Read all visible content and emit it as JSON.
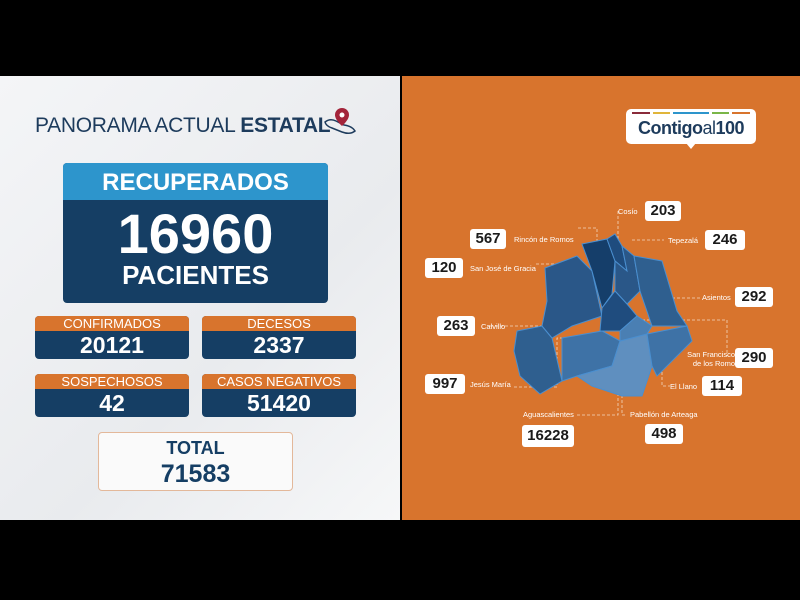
{
  "header": {
    "title_light": "PANORAMA ACTUAL",
    "title_bold": "ESTATAL",
    "icon": "map-pin-icon"
  },
  "recuperados": {
    "label": "RECUPERADOS",
    "value": "16960",
    "unit": "PACIENTES"
  },
  "stats": [
    {
      "label": "CONFIRMADOS",
      "value": "20121"
    },
    {
      "label": "DECESOS",
      "value": "2337"
    },
    {
      "label": "SOSPECHOSOS",
      "value": "42"
    },
    {
      "label": "CASOS NEGATIVOS",
      "value": "51420"
    }
  ],
  "total": {
    "label": "TOTAL",
    "value": "71583"
  },
  "logo": {
    "text_bold": "Contigo",
    "text_light": "al",
    "text_num": "100",
    "bar_colors": [
      "#8a2b3a",
      "#e0b53a",
      "#2d95cc",
      "#7ab648",
      "#d8742d"
    ]
  },
  "colors": {
    "orange": "#d8742d",
    "navy": "#153e64",
    "light_blue": "#2d95cc"
  },
  "municipalities": [
    {
      "name": "Cosío",
      "value": "203"
    },
    {
      "name": "Rincón de Romos",
      "value": "567"
    },
    {
      "name": "Tepezalá",
      "value": "246"
    },
    {
      "name": "San José de Gracia",
      "value": "120"
    },
    {
      "name": "Asientos",
      "value": "292"
    },
    {
      "name": "Calvillo",
      "value": "263"
    },
    {
      "name": "San Francisco de los Romo",
      "value": "290"
    },
    {
      "name": "Jesús María",
      "value": "997"
    },
    {
      "name": "El Llano",
      "value": "114"
    },
    {
      "name": "Aguascalientes",
      "value": "16228"
    },
    {
      "name": "Pabellón de Arteaga",
      "value": "498"
    }
  ]
}
